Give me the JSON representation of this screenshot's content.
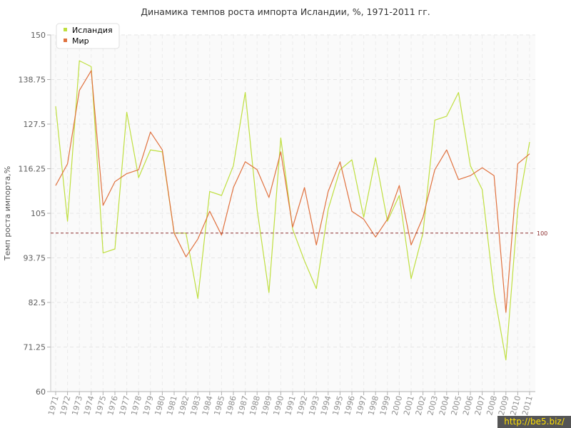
{
  "chart_data": {
    "type": "line",
    "title": "Динамика темпов роста импорта Исландии, %, 1971-2011 гг.",
    "xlabel": "",
    "ylabel": "Темп роста импорта,%",
    "ylim": [
      60,
      150
    ],
    "yticks": [
      "60",
      "71.25",
      "82.5",
      "93.75",
      "105",
      "116.25",
      "127.5",
      "138.75",
      "150"
    ],
    "x": [
      "1971",
      "1972",
      "1973",
      "1974",
      "1975",
      "1976",
      "1977",
      "1978",
      "1979",
      "1980",
      "1981",
      "1982",
      "1983",
      "1984",
      "1985",
      "1986",
      "1987",
      "1988",
      "1989",
      "1990",
      "1991",
      "1992",
      "1993",
      "1994",
      "1995",
      "1996",
      "1997",
      "1998",
      "1999",
      "2000",
      "2001",
      "2002",
      "2003",
      "2004",
      "2005",
      "2006",
      "2007",
      "2008",
      "2009",
      "2010",
      "2011"
    ],
    "series": [
      {
        "name": "Исландия",
        "color": "#bfdf3f",
        "values": [
          132,
          103,
          143.5,
          142,
          95,
          96,
          130.5,
          114,
          121,
          120.5,
          100,
          100,
          83.5,
          110.5,
          109.5,
          117,
          135.5,
          106,
          85,
          124,
          101,
          93,
          86,
          106,
          116,
          118.5,
          104,
          119,
          103,
          109.5,
          88.5,
          100,
          128.5,
          129.5,
          135.5,
          117,
          111,
          85,
          68,
          106,
          123
        ]
      },
      {
        "name": "Мир",
        "color": "#e0713e",
        "values": [
          112,
          117.5,
          136,
          141,
          107,
          113,
          115,
          116,
          125.5,
          121,
          100,
          94,
          98.5,
          105.5,
          99.5,
          111.5,
          118,
          116,
          109,
          120.5,
          101.5,
          111.5,
          97,
          110.5,
          118,
          105.5,
          103.5,
          99,
          103.5,
          112,
          97,
          104,
          116,
          121,
          113.5,
          114.5,
          116.5,
          114.5,
          80,
          117.5,
          120
        ]
      }
    ],
    "reference_line": {
      "value": 100,
      "label": "100",
      "color": "#8b2d2d"
    },
    "grid": true,
    "legend_position": "top-left"
  },
  "watermark": "http://be5.biz/"
}
